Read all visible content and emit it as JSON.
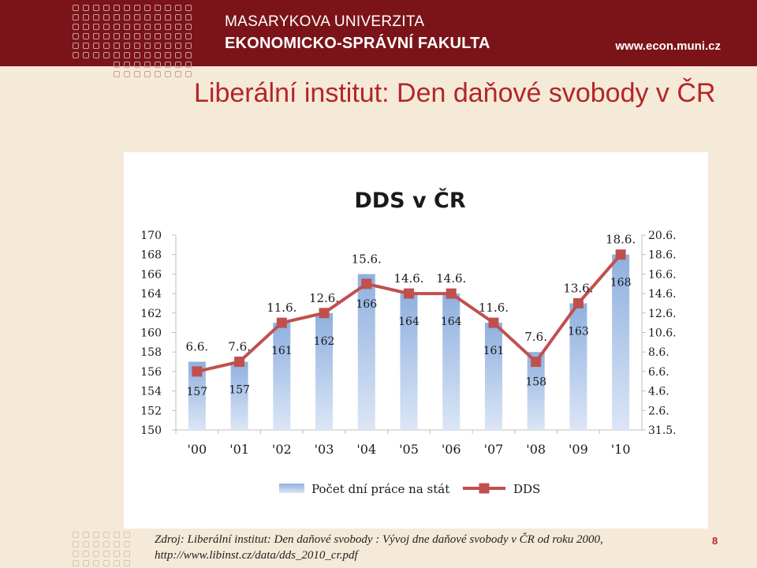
{
  "header": {
    "university": "MASARYKOVA UNIVERZITA",
    "faculty": "EKONOMICKO-SPRÁVNÍ FAKULTA",
    "website": "www.econ.muni.cz"
  },
  "slide": {
    "title": "Liberální institut: Den daňové svobody v ČR",
    "source": "Zdroj: Liberální institut: Den daňové svobody : Vývoj dne daňové svobody v ČR od roku 2000, http://www.libinst.cz/data/dds_2010_cr.pdf",
    "page_number": "8"
  },
  "colors": {
    "header_bg": "#7b1419",
    "title": "#b3262b",
    "bar": "#a9c4e8",
    "line": "#c0504d"
  },
  "chart_data": {
    "type": "bar",
    "title": "DDS v ČR",
    "categories": [
      "'00",
      "'01",
      "'02",
      "'03",
      "'04",
      "'05",
      "'06",
      "'07",
      "'08",
      "'09",
      "'10"
    ],
    "y_left_ticks": [
      "170",
      "168",
      "166",
      "164",
      "162",
      "160",
      "158",
      "156",
      "154",
      "152",
      "150"
    ],
    "y_right_ticks": [
      "20.6.",
      "18.6.",
      "16.6.",
      "14.6.",
      "12.6.",
      "10.6.",
      "8.6.",
      "6.6.",
      "4.6.",
      "2.6.",
      "31.5."
    ],
    "ylim": [
      150,
      170
    ],
    "grid": false,
    "legend_position": "bottom",
    "series": [
      {
        "name": "Počet dní práce na stát",
        "type": "bar",
        "values": [
          157,
          157,
          161,
          162,
          166,
          164,
          164,
          161,
          158,
          163,
          168
        ],
        "labels": [
          "157",
          "157",
          "161",
          "162",
          "166",
          "164",
          "164",
          "161",
          "158",
          "163",
          "168"
        ]
      },
      {
        "name": "DDS",
        "type": "line",
        "values": [
          156,
          157,
          161,
          162,
          165,
          164,
          164,
          161,
          157,
          163,
          168
        ],
        "labels": [
          "6.6.",
          "7.6.",
          "11.6.",
          "12.6.",
          "15.6.",
          "14.6.",
          "14.6.",
          "11.6.",
          "7.6.",
          "13.6.",
          "18.6."
        ]
      }
    ]
  }
}
